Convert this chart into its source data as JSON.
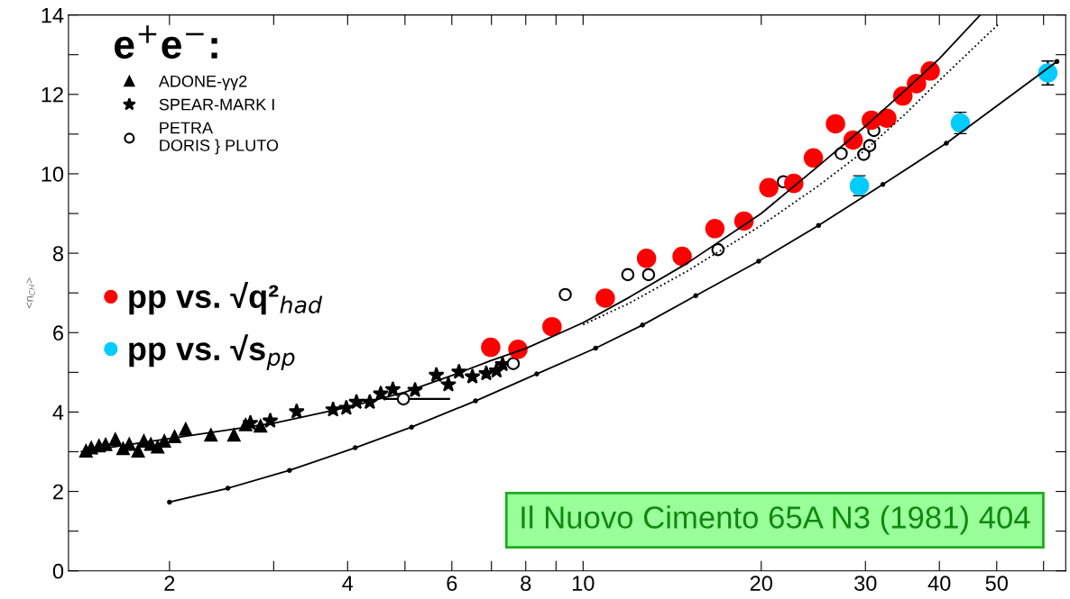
{
  "chart_data": {
    "type": "scatter",
    "ylabel": "<n$_{CH}$>",
    "legend_title": "e$^{+}$e$^{−}$:",
    "legend": "top left",
    "log": "x",
    "xlim": [
      1.35,
      65.4
    ],
    "ylim": [
      0,
      14
    ],
    "xticks": [
      2,
      {
        "value": 3,
        "label": null
      },
      4,
      {
        "value": 5,
        "label": null
      },
      6,
      {
        "value": 7,
        "label": null
      },
      8,
      {
        "value": 9,
        "label": null
      },
      10,
      20,
      30,
      40,
      50,
      {
        "value": 60,
        "label": null
      }
    ],
    "yticks": [
      0,
      {
        "value": 1,
        "label": null
      },
      2,
      {
        "value": 3,
        "label": null
      },
      4,
      {
        "value": 5,
        "label": null
      },
      6,
      {
        "value": 7,
        "label": null
      },
      8,
      {
        "value": 9,
        "label": null
      },
      10,
      {
        "value": 11,
        "label": null
      },
      12,
      {
        "value": 13,
        "label": null
      },
      14
    ],
    "grid": false,
    "annotations": [
      "Il Nuovo Cimento 65A N3 (1981) 404"
    ],
    "series": [
      {
        "type": "line",
        "color": "#000000",
        "line_style": "solid",
        "marker": "none",
        "x": [
          1.42,
          2,
          3,
          4,
          5,
          6,
          7,
          8,
          10,
          12,
          15,
          20,
          25,
          30,
          35,
          40,
          46.9
        ],
        "values": [
          3.0,
          3.33,
          3.72,
          4.12,
          4.5,
          4.92,
          5.3,
          5.6,
          6.25,
          6.9,
          7.75,
          9.0,
          10.2,
          11.2,
          12.1,
          12.9,
          14.0
        ]
      },
      {
        "type": "line",
        "color": "#000000",
        "line_style": "dotted",
        "marker": "none",
        "x": [
          10,
          12,
          15,
          20,
          25,
          30,
          35,
          40,
          50.5
        ],
        "values": [
          6.2,
          6.75,
          7.55,
          8.7,
          9.7,
          10.6,
          11.5,
          12.35,
          13.79
        ]
      },
      {
        "type": "line",
        "color": "#000000",
        "line_style": "solid",
        "marker": "circle",
        "x": [
          2.0,
          2.51,
          3.19,
          4.12,
          5.13,
          6.58,
          8.35,
          10.5,
          12.6,
          15.5,
          19.8,
          25.0,
          32.1,
          41.1,
          63.2
        ],
        "values": [
          1.73,
          2.08,
          2.53,
          3.1,
          3.62,
          4.28,
          4.96,
          5.61,
          6.19,
          6.93,
          7.8,
          8.7,
          9.73,
          10.77,
          12.83
        ]
      },
      {
        "name": "ADONE-γγ2",
        "color": "#000000",
        "marker": "triangle",
        "x": [
          1.445,
          1.475,
          1.52,
          1.56,
          1.62,
          1.67,
          1.71,
          1.77,
          1.81,
          1.86,
          1.91,
          1.96,
          2.04,
          2.13,
          2.35,
          2.57,
          2.69,
          2.85
        ],
        "values": [
          3.02,
          3.1,
          3.15,
          3.18,
          3.31,
          3.08,
          3.19,
          3.02,
          3.27,
          3.19,
          3.12,
          3.27,
          3.38,
          3.57,
          3.42,
          3.42,
          3.68,
          3.65
        ]
      },
      {
        "name": "SPEAR-MARK I",
        "color": "#000000",
        "marker": "star",
        "x": [
          2.74,
          2.96,
          3.28,
          3.78,
          3.98,
          4.14,
          4.36,
          4.55,
          4.77,
          5.2,
          5.65,
          5.92,
          6.17,
          6.5,
          6.86,
          7.14,
          7.31
        ],
        "values": [
          3.72,
          3.78,
          4.01,
          4.06,
          4.1,
          4.25,
          4.25,
          4.46,
          4.57,
          4.55,
          4.93,
          4.69,
          5.01,
          4.89,
          4.97,
          5.04,
          5.2
        ]
      },
      {
        "name": "PETRA\nDORIS } PLUTO",
        "color": "#000000",
        "marker": "circle",
        "x": [
          7.62,
          9.33,
          11.9,
          12.9,
          16.9,
          21.8,
          27.3,
          29.8,
          30.5,
          31.0
        ],
        "values": [
          5.22,
          6.96,
          7.46,
          7.46,
          8.09,
          9.8,
          10.51,
          10.49,
          10.71,
          11.09
        ]
      },
      {
        "color": "#000000",
        "marker": "circle",
        "x": [
          4.97
        ],
        "values": [
          4.33
        ],
        "xerrors": [
          [
            4.63,
            5.96
          ]
        ]
      },
      {
        "name": "pp vs. √q²$_{had}$",
        "color": "#ff0000",
        "marker": "circle",
        "x": [
          6.98,
          7.76,
          8.86,
          10.9,
          12.8,
          14.7,
          16.7,
          18.7,
          20.6,
          22.7,
          24.5,
          26.7,
          28.6,
          30.7,
          32.6,
          34.7,
          36.6,
          38.6
        ],
        "values": [
          5.63,
          5.58,
          6.15,
          6.87,
          7.87,
          7.92,
          8.62,
          8.81,
          9.65,
          9.76,
          10.4,
          11.26,
          10.85,
          11.35,
          11.4,
          11.96,
          12.27,
          12.59
        ]
      },
      {
        "name": "pp vs. √s$_{pp}$",
        "color": "#00ccff",
        "marker": "circle",
        "x": [
          29.3,
          43.4,
          61.0
        ],
        "values": [
          9.7,
          11.28,
          12.54
        ],
        "errors": [
          0.25,
          0.27,
          0.3
        ]
      }
    ]
  }
}
